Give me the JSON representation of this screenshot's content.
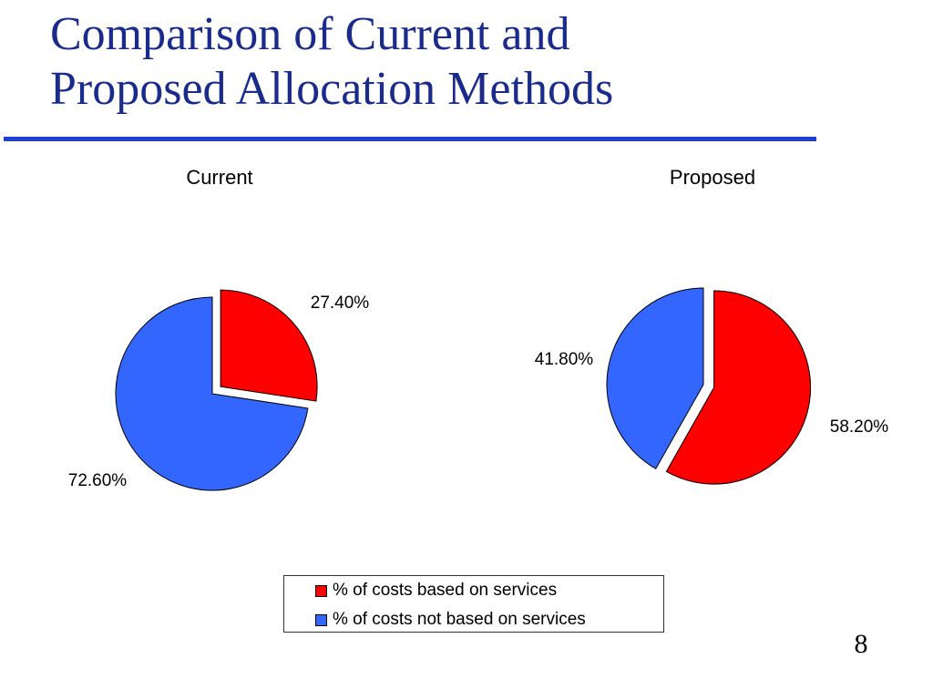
{
  "slide": {
    "title_lines": [
      "Comparison of Current and",
      "Proposed Allocation Methods"
    ],
    "page_number": "8",
    "rule_color": "#1f3fd6"
  },
  "chart_data": [
    {
      "type": "pie",
      "title": "Current",
      "slices": [
        {
          "label": "% of costs based on services",
          "value": 27.4,
          "display": "27.40%",
          "color": "#ff0000",
          "exploded": true
        },
        {
          "label": "% of costs not based on services",
          "value": 72.6,
          "display": "72.60%",
          "color": "#3366ff",
          "exploded": false
        }
      ]
    },
    {
      "type": "pie",
      "title": "Proposed",
      "slices": [
        {
          "label": "% of costs based on services",
          "value": 58.2,
          "display": "58.20%",
          "color": "#ff0000",
          "exploded": true
        },
        {
          "label": "% of costs not based on services",
          "value": 41.8,
          "display": "41.80%",
          "color": "#3366ff",
          "exploded": false
        }
      ]
    }
  ],
  "legend": {
    "placement": "bottom-center",
    "items": [
      {
        "label": "% of costs based on services",
        "color": "#ff0000"
      },
      {
        "label": "% of costs not based on services",
        "color": "#3366ff"
      }
    ]
  }
}
